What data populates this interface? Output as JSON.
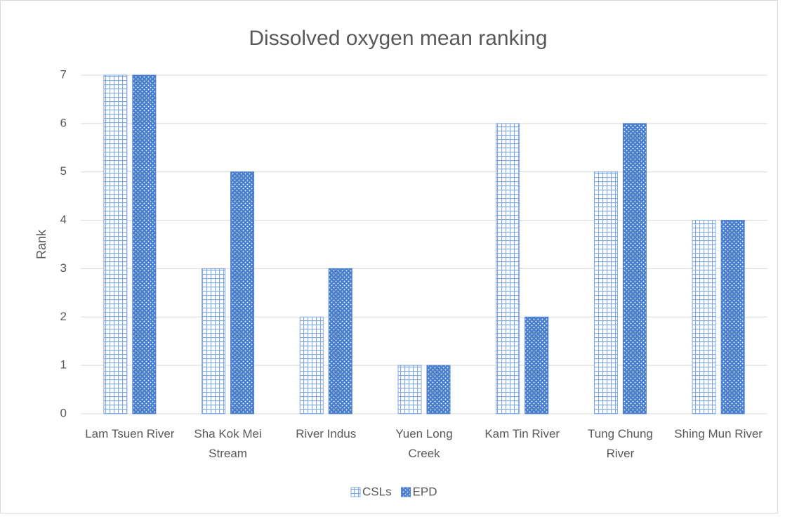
{
  "chart_data": {
    "type": "bar",
    "title": "Dissolved oxygen mean ranking",
    "y_label": "Rank",
    "categories": [
      "Lam Tsuen River",
      "Sha Kok Mei Stream",
      "River Indus",
      "Yuen Long Creek",
      "Kam Tin River",
      "Tung Chung River",
      "Shing Mun River"
    ],
    "series": [
      {
        "name": "CSLs",
        "color": "#7fa9e0",
        "values": [
          7,
          3,
          2,
          1,
          6,
          5,
          4
        ]
      },
      {
        "name": "EPD",
        "color": "#4a7fcf",
        "values": [
          7,
          5,
          3,
          1,
          2,
          6,
          4
        ]
      }
    ],
    "ylim": [
      0,
      7
    ],
    "yticks": [
      0,
      1,
      2,
      3,
      4,
      5,
      6,
      7
    ],
    "grid": true,
    "legend": "bottom"
  }
}
